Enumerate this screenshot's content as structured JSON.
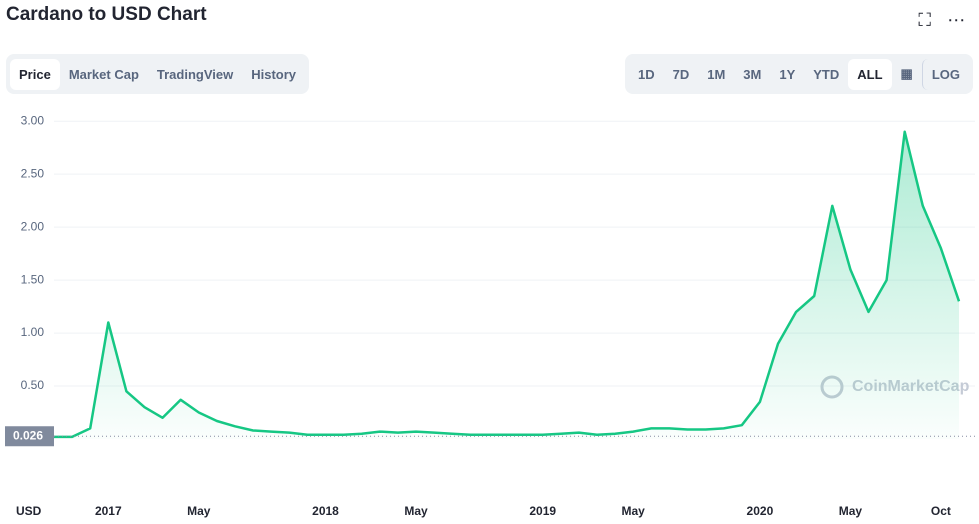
{
  "ui": {
    "tabs": [
      "Price",
      "Market Cap",
      "TradingView",
      "History"
    ],
    "selected_tab": 0,
    "ranges": [
      "1D",
      "7D",
      "1M",
      "3M",
      "1Y",
      "YTD",
      "ALL"
    ],
    "selected_range": 6,
    "log_button": "LOG",
    "watermark": "CoinMarketCap",
    "currency": "USD"
  },
  "chart_data": {
    "type": "line",
    "title": "Cardano to USD Chart",
    "categories": [
      null,
      null,
      null,
      "2017",
      null,
      null,
      null,
      null,
      "May",
      null,
      null,
      null,
      null,
      null,
      null,
      "2018",
      null,
      null,
      null,
      null,
      "May",
      null,
      null,
      null,
      null,
      null,
      null,
      "2019",
      null,
      null,
      null,
      null,
      "May",
      null,
      null,
      null,
      null,
      null,
      null,
      "2020",
      null,
      null,
      null,
      null,
      "May",
      null,
      null,
      null,
      null,
      "Oct",
      null
    ],
    "series": [
      {
        "name": "Price",
        "color": "#16c784",
        "values": [
          0.02,
          0.02,
          0.1,
          1.1,
          0.45,
          0.3,
          0.2,
          0.37,
          0.25,
          0.17,
          0.12,
          0.08,
          0.07,
          0.06,
          0.04,
          0.04,
          0.04,
          0.05,
          0.07,
          0.06,
          0.07,
          0.06,
          0.05,
          0.04,
          0.04,
          0.04,
          0.04,
          0.04,
          0.05,
          0.06,
          0.04,
          0.05,
          0.07,
          0.1,
          0.1,
          0.09,
          0.09,
          0.1,
          0.13,
          0.35,
          0.9,
          1.2,
          1.35,
          2.2,
          1.6,
          1.2,
          1.5,
          2.9,
          2.2,
          1.8,
          1.3
        ]
      }
    ],
    "ylim": [
      0,
      3.2
    ],
    "yticks": [
      {
        "value": 0.5,
        "label": "0.50"
      },
      {
        "value": 1,
        "label": "1.00"
      },
      {
        "value": 1.5,
        "label": "1.50"
      },
      {
        "value": 2,
        "label": "2.00"
      },
      {
        "value": 2.5,
        "label": "2.50"
      },
      {
        "value": 3,
        "label": "3.00"
      }
    ],
    "grid": true,
    "reference_line": 0.026
  }
}
